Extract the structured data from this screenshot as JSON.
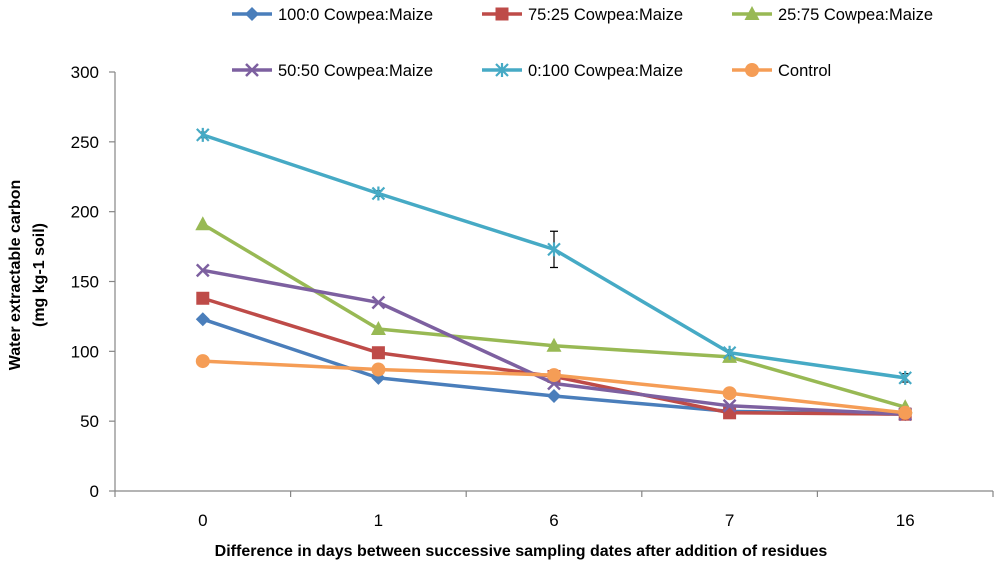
{
  "chart_data": {
    "type": "line",
    "title": "",
    "xlabel": "Difference in days between successive sampling dates after addition of residues",
    "ylabel_line1": "Water extractable carbon",
    "ylabel_line2": "(mg kg-1 soil)",
    "categories": [
      "0",
      "1",
      "6",
      "7",
      "16"
    ],
    "ylim": [
      0,
      300
    ],
    "yticks": [
      0,
      50,
      100,
      150,
      200,
      250,
      300
    ],
    "ytick_labels": [
      "0",
      "50",
      "100",
      "150",
      "200",
      "250",
      "300"
    ],
    "grid": false,
    "legend_position": "top",
    "series": [
      {
        "name": "100:0 Cowpea:Maize",
        "color": "#4a7ebb",
        "marker": "diamond",
        "values": [
          123,
          81,
          68,
          57,
          55
        ]
      },
      {
        "name": "75:25 Cowpea:Maize",
        "color": "#be4b48",
        "marker": "square",
        "values": [
          138,
          99,
          82,
          56,
          55
        ]
      },
      {
        "name": "25:75 Cowpea:Maize",
        "color": "#98b954",
        "marker": "triangle",
        "values": [
          191,
          116,
          104,
          96,
          60
        ]
      },
      {
        "name": "50:50 Cowpea:Maize",
        "color": "#7d60a0",
        "marker": "x",
        "values": [
          158,
          135,
          77,
          61,
          55
        ]
      },
      {
        "name": "0:100 Cowpea:Maize",
        "color": "#46aac5",
        "marker": "asterisk",
        "values": [
          255,
          213,
          173,
          99,
          81
        ],
        "error": [
          2,
          2,
          13,
          2,
          3
        ]
      },
      {
        "name": "Control",
        "color": "#f59d56",
        "marker": "circle",
        "values": [
          93,
          87,
          83,
          70,
          56
        ]
      }
    ]
  }
}
